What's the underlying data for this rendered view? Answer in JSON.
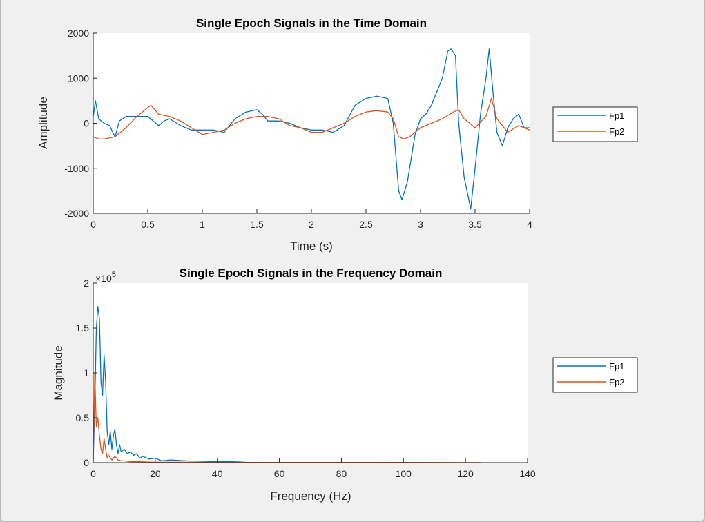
{
  "chart_data": [
    {
      "type": "line",
      "title": "Single Epoch Signals in the Time Domain",
      "xlabel": "Time (s)",
      "ylabel": "Amplitude",
      "xlim": [
        0,
        4
      ],
      "ylim": [
        -2000,
        2000
      ],
      "xticks": [
        "0",
        "0.5",
        "1",
        "1.5",
        "2",
        "2.5",
        "3",
        "3.5",
        "4"
      ],
      "yticks": [
        "-2000",
        "-1000",
        "0",
        "1000",
        "2000"
      ],
      "legend": "outside-right",
      "series": [
        {
          "name": "Fp1",
          "color": "#0072BD",
          "x": [
            0,
            0.02,
            0.05,
            0.1,
            0.15,
            0.2,
            0.24,
            0.3,
            0.4,
            0.5,
            0.55,
            0.6,
            0.65,
            0.7,
            0.8,
            0.9,
            1.0,
            1.1,
            1.2,
            1.3,
            1.4,
            1.5,
            1.55,
            1.6,
            1.7,
            1.8,
            1.9,
            2.0,
            2.1,
            2.2,
            2.3,
            2.4,
            2.5,
            2.6,
            2.7,
            2.75,
            2.8,
            2.83,
            2.88,
            2.95,
            3.0,
            3.05,
            3.1,
            3.15,
            3.2,
            3.25,
            3.28,
            3.32,
            3.35,
            3.4,
            3.46,
            3.5,
            3.55,
            3.6,
            3.63,
            3.66,
            3.7,
            3.75,
            3.8,
            3.85,
            3.9,
            3.95,
            4.0
          ],
          "y": [
            150,
            500,
            100,
            0,
            -50,
            -300,
            50,
            150,
            150,
            150,
            50,
            -50,
            50,
            100,
            -50,
            -150,
            -150,
            -150,
            -200,
            100,
            250,
            300,
            200,
            50,
            50,
            0,
            -100,
            -150,
            -150,
            -200,
            -50,
            400,
            550,
            600,
            550,
            0,
            -1500,
            -1700,
            -1300,
            -250,
            100,
            200,
            400,
            700,
            1000,
            1600,
            1650,
            1500,
            0,
            -1200,
            -1900,
            -1000,
            200,
            1000,
            1650,
            800,
            -200,
            -500,
            -100,
            100,
            200,
            -100,
            -100
          ]
        },
        {
          "name": "Fp2",
          "color": "#D95319",
          "x": [
            0,
            0.05,
            0.1,
            0.2,
            0.3,
            0.4,
            0.5,
            0.53,
            0.6,
            0.7,
            0.8,
            0.9,
            1.0,
            1.1,
            1.2,
            1.3,
            1.4,
            1.5,
            1.6,
            1.7,
            1.8,
            1.9,
            2.0,
            2.1,
            2.2,
            2.3,
            2.4,
            2.5,
            2.6,
            2.7,
            2.75,
            2.8,
            2.85,
            2.9,
            3.0,
            3.1,
            3.2,
            3.3,
            3.35,
            3.4,
            3.5,
            3.6,
            3.65,
            3.7,
            3.8,
            3.9,
            4.0
          ],
          "y": [
            -300,
            -350,
            -350,
            -300,
            -100,
            150,
            350,
            400,
            200,
            150,
            50,
            -100,
            -250,
            -200,
            -150,
            0,
            100,
            150,
            150,
            100,
            -50,
            -100,
            -200,
            -200,
            -100,
            0,
            150,
            250,
            280,
            250,
            100,
            -300,
            -350,
            -300,
            -100,
            0,
            100,
            250,
            300,
            100,
            -100,
            150,
            550,
            100,
            -200,
            -50,
            -150
          ]
        }
      ]
    },
    {
      "type": "line",
      "title": "Single Epoch Signals in the Frequency Domain",
      "xlabel": "Frequency (Hz)",
      "ylabel": "Magnitude",
      "scale_label": "×10",
      "scale_exponent": "5",
      "xlim": [
        0,
        140
      ],
      "ylim": [
        0,
        2
      ],
      "xticks": [
        "0",
        "20",
        "40",
        "60",
        "80",
        "100",
        "120",
        "140"
      ],
      "yticks": [
        "0",
        "0.5",
        "1",
        "1.5",
        "2"
      ],
      "legend": "outside-right",
      "series": [
        {
          "name": "Fp1",
          "color": "#0072BD",
          "x": [
            0,
            0.5,
            1,
            1.5,
            2,
            2.5,
            3,
            3.5,
            4,
            4.5,
            5,
            5.5,
            6,
            6.5,
            7,
            7.5,
            8,
            8.5,
            9,
            10,
            11,
            12,
            13,
            14,
            15,
            16,
            18,
            20,
            22,
            25,
            30,
            35,
            40,
            45,
            49
          ],
          "y": [
            0.02,
            0.6,
            1.5,
            1.74,
            1.6,
            0.9,
            0.75,
            1.2,
            0.9,
            0.35,
            0.2,
            0.35,
            0.15,
            0.3,
            0.37,
            0.2,
            0.1,
            0.2,
            0.12,
            0.15,
            0.1,
            0.12,
            0.08,
            0.1,
            0.05,
            0.07,
            0.04,
            0.05,
            0.02,
            0.03,
            0.02,
            0.015,
            0.01,
            0.01,
            0.005
          ]
        },
        {
          "name": "Fp2",
          "color": "#D95319",
          "x": [
            0,
            0.5,
            1,
            1.5,
            2,
            2.5,
            3,
            3.5,
            4,
            4.5,
            5,
            6,
            7,
            8,
            9,
            10,
            12,
            15,
            20,
            30,
            40,
            50,
            60,
            80,
            100,
            125
          ],
          "y": [
            0,
            1.0,
            0.4,
            0.5,
            0.3,
            0.15,
            0.1,
            0.27,
            0.15,
            0.05,
            0.08,
            0.03,
            0.07,
            0.03,
            0.02,
            0.02,
            0.01,
            0.01,
            0.005,
            0.005,
            0.003,
            0.003,
            0.002,
            0.002,
            0.002,
            0.001
          ]
        }
      ]
    }
  ]
}
